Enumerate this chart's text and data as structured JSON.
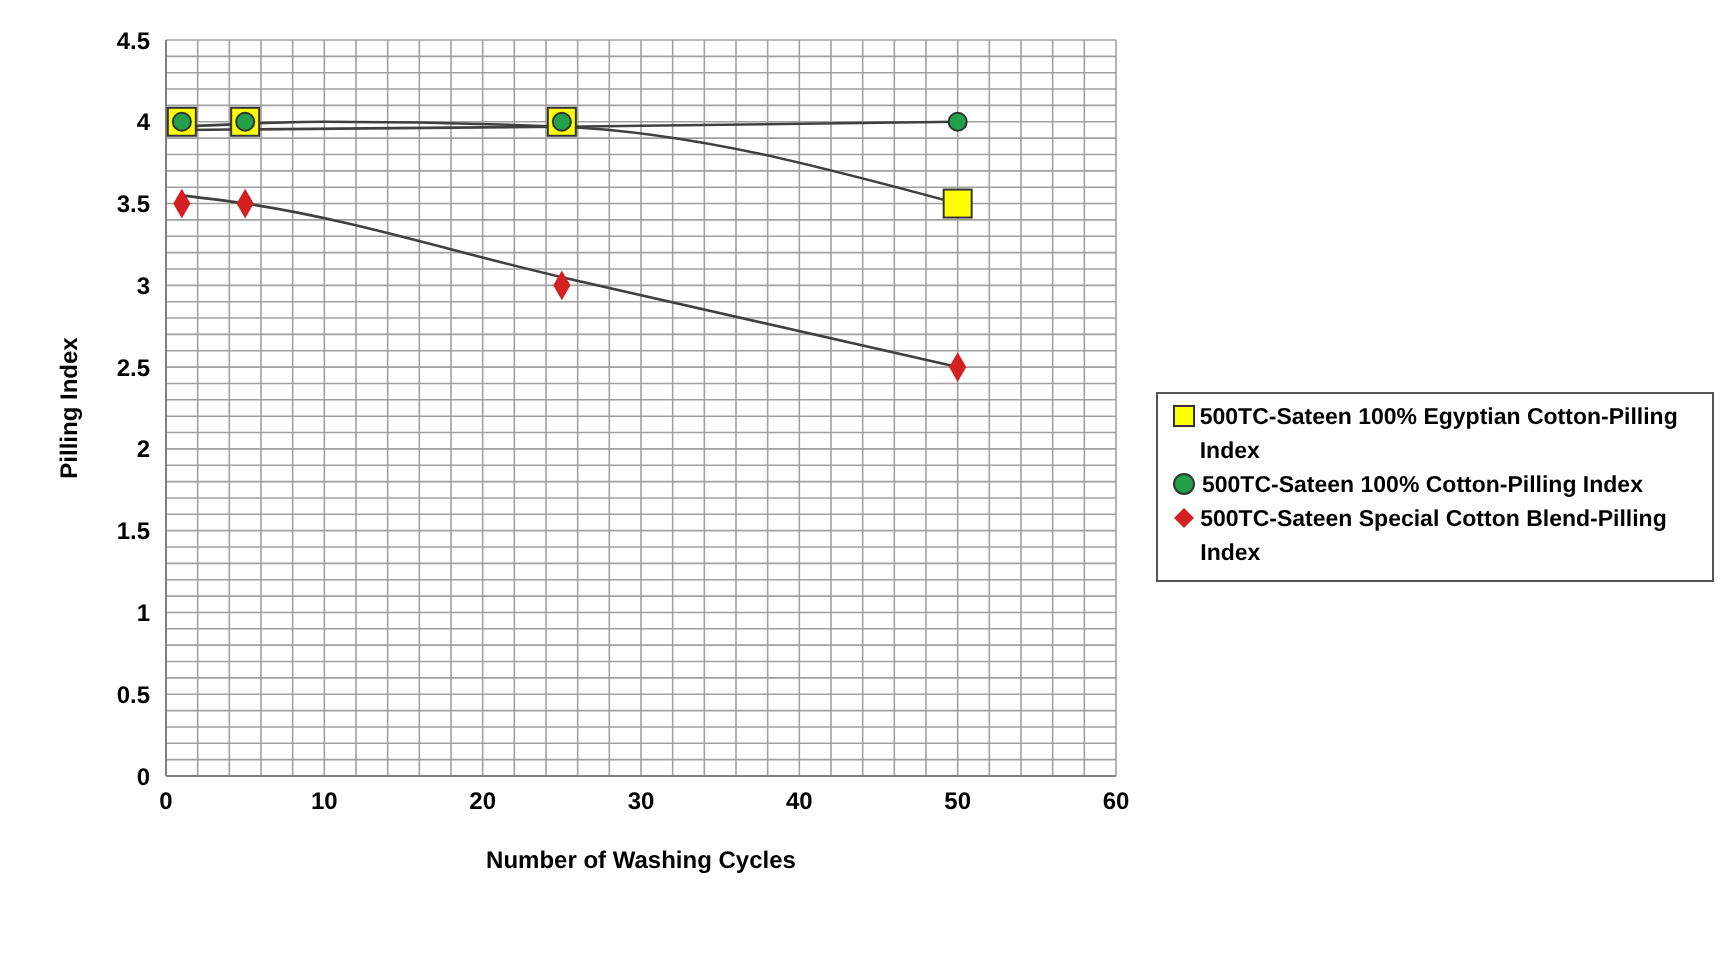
{
  "chart_data": {
    "type": "scatter",
    "xlabel": "Number of Washing Cycles",
    "ylabel": "Pilling Index",
    "xlim": [
      0,
      60
    ],
    "ylim": [
      0,
      4.5
    ],
    "xticks": [
      0,
      {
        "value": 2,
        "label": null
      },
      {
        "value": 4,
        "label": null
      },
      {
        "value": 6,
        "label": null
      },
      {
        "value": 8,
        "label": null
      },
      10,
      {
        "value": 12,
        "label": null
      },
      {
        "value": 14,
        "label": null
      },
      {
        "value": 16,
        "label": null
      },
      {
        "value": 18,
        "label": null
      },
      20,
      {
        "value": 22,
        "label": null
      },
      {
        "value": 24,
        "label": null
      },
      {
        "value": 26,
        "label": null
      },
      {
        "value": 28,
        "label": null
      },
      30,
      {
        "value": 32,
        "label": null
      },
      {
        "value": 34,
        "label": null
      },
      {
        "value": 36,
        "label": null
      },
      {
        "value": 38,
        "label": null
      },
      40,
      {
        "value": 42,
        "label": null
      },
      {
        "value": 44,
        "label": null
      },
      {
        "value": 46,
        "label": null
      },
      {
        "value": 48,
        "label": null
      },
      50,
      {
        "value": 52,
        "label": null
      },
      {
        "value": 54,
        "label": null
      },
      {
        "value": 56,
        "label": null
      },
      {
        "value": 58,
        "label": null
      },
      60
    ],
    "yticks": [
      0,
      {
        "value": 0.1,
        "label": null
      },
      {
        "value": 0.2,
        "label": null
      },
      {
        "value": 0.3,
        "label": null
      },
      {
        "value": 0.4,
        "label": null
      },
      0.5,
      {
        "value": 0.6,
        "label": null
      },
      {
        "value": 0.7,
        "label": null
      },
      {
        "value": 0.8,
        "label": null
      },
      {
        "value": 0.9,
        "label": null
      },
      1,
      {
        "value": 1.1,
        "label": null
      },
      {
        "value": 1.2,
        "label": null
      },
      {
        "value": 1.3,
        "label": null
      },
      {
        "value": 1.4,
        "label": null
      },
      1.5,
      {
        "value": 1.6,
        "label": null
      },
      {
        "value": 1.7,
        "label": null
      },
      {
        "value": 1.8,
        "label": null
      },
      {
        "value": 1.9,
        "label": null
      },
      2,
      {
        "value": 2.1,
        "label": null
      },
      {
        "value": 2.2,
        "label": null
      },
      {
        "value": 2.3,
        "label": null
      },
      {
        "value": 2.4,
        "label": null
      },
      2.5,
      {
        "value": 2.6,
        "label": null
      },
      {
        "value": 2.7,
        "label": null
      },
      {
        "value": 2.8,
        "label": null
      },
      {
        "value": 2.9,
        "label": null
      },
      3,
      {
        "value": 3.1,
        "label": null
      },
      {
        "value": 3.2,
        "label": null
      },
      {
        "value": 3.3,
        "label": null
      },
      {
        "value": 3.4,
        "label": null
      },
      3.5,
      {
        "value": 3.6,
        "label": null
      },
      {
        "value": 3.7,
        "label": null
      },
      {
        "value": 3.8,
        "label": null
      },
      {
        "value": 3.9,
        "label": null
      },
      4,
      {
        "value": 4.1,
        "label": null
      },
      {
        "value": 4.2,
        "label": null
      },
      {
        "value": 4.3,
        "label": null
      },
      {
        "value": 4.4,
        "label": null
      },
      4.5
    ],
    "grid": true,
    "legend": "right",
    "x": [
      1,
      5,
      25,
      50
    ],
    "series": [
      {
        "name": "500TC-Sateen 100% Egyptian Cotton-Pilling Index",
        "color": "#ffff00",
        "marker": "square",
        "values": [
          4,
          4,
          4,
          3.5
        ]
      },
      {
        "name": "500TC-Sateen 100% Cotton-Pilling Index",
        "color": "#22a04a",
        "marker": "circle",
        "values": [
          4,
          4,
          4,
          4
        ]
      },
      {
        "name": "500TC-Sateen Special Cotton Blend-Pilling Index",
        "color": "#d42020",
        "marker": "diamond",
        "values": [
          3.5,
          3.5,
          3,
          2.5
        ]
      },
      {
        "type": "line",
        "color": "#404040",
        "marker": "none",
        "x": [
          1,
          10,
          25,
          50
        ],
        "values": [
          3.97,
          4.0,
          3.97,
          3.5
        ]
      },
      {
        "type": "line",
        "color": "#404040",
        "marker": "none",
        "x": [
          1,
          25,
          50
        ],
        "values": [
          3.95,
          3.97,
          4.0
        ]
      },
      {
        "type": "line",
        "color": "#404040",
        "marker": "none",
        "x": [
          1,
          5,
          25,
          50
        ],
        "values": [
          3.55,
          3.5,
          3.05,
          2.5
        ]
      }
    ]
  }
}
